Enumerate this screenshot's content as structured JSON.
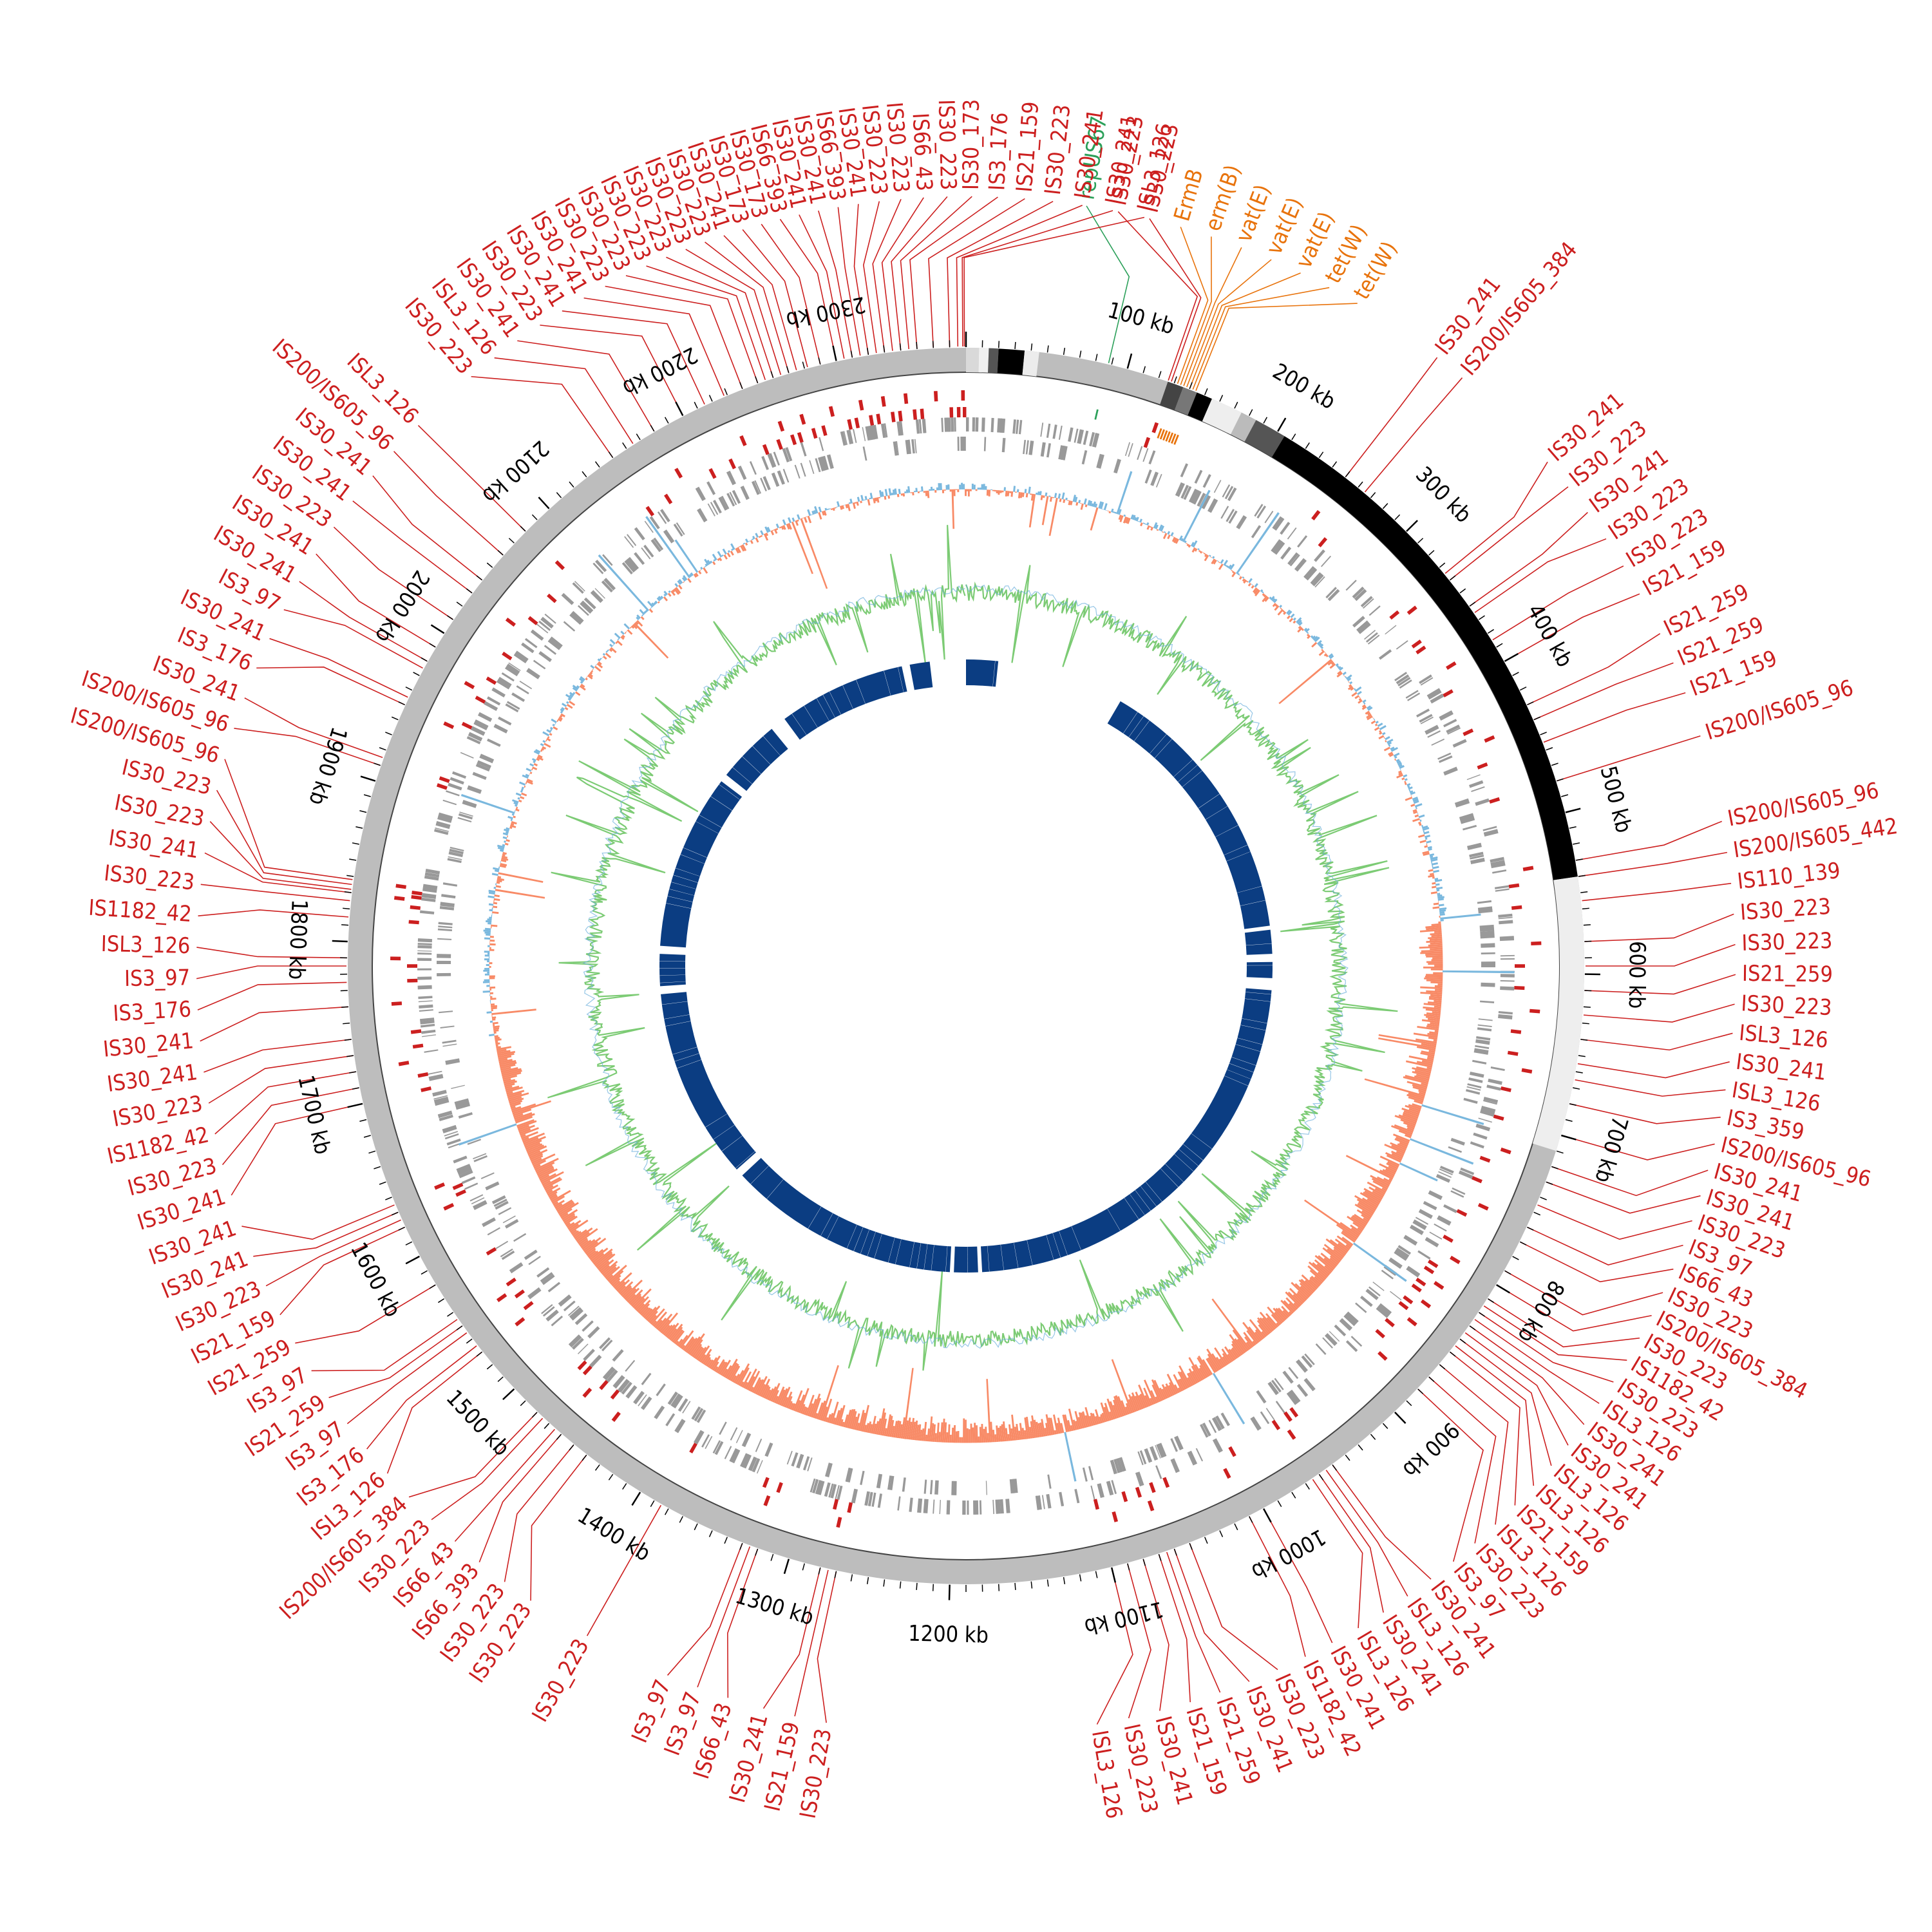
{
  "genome": {
    "length_kb": 2380,
    "tick_label_step_kb": 100,
    "minor_tick_step_kb": 10
  },
  "colors": {
    "backbone": "#bdbdbd",
    "genes": "#999999",
    "is_element": "#cc1f1f",
    "resistance": "#e8730c",
    "replicon": "#2ca05a",
    "gc_positive": "#7ab8de",
    "gc_negative": "#f88a66",
    "skew_green": "#7ccb74",
    "skew_blue": "#6aaedc",
    "blast": "#0b3d82"
  },
  "tick_labels": [
    "100 kb",
    "200 kb",
    "300 kb",
    "400 kb",
    "500 kb",
    "600 kb",
    "700 kb",
    "800 kb",
    "900 kb",
    "1000 kb",
    "1100 kb",
    "1200 kb",
    "1300 kb",
    "1400 kb",
    "1500 kb",
    "1600 kb",
    "1700 kb",
    "1800 kb",
    "1900 kb",
    "2000 kb",
    "2100 kb",
    "2200 kb",
    "2300 kb"
  ],
  "regions": [
    {
      "start": 0,
      "end": 8,
      "shade": "#d9d9d9"
    },
    {
      "start": 8,
      "end": 14,
      "shade": "#f0f0f0"
    },
    {
      "start": 14,
      "end": 20,
      "shade": "#555555"
    },
    {
      "start": 20,
      "end": 36,
      "shade": "#000000"
    },
    {
      "start": 36,
      "end": 45,
      "shade": "#ececec"
    },
    {
      "start": 126,
      "end": 136,
      "shade": "#444444"
    },
    {
      "start": 136,
      "end": 145,
      "shade": "#777777"
    },
    {
      "start": 145,
      "end": 155,
      "shade": "#000000"
    },
    {
      "start": 155,
      "end": 175,
      "shade": "#eeeeee"
    },
    {
      "start": 175,
      "end": 185,
      "shade": "#bbbbbb"
    },
    {
      "start": 185,
      "end": 205,
      "shade": "#555555"
    },
    {
      "start": 205,
      "end": 540,
      "shade": "#000000"
    },
    {
      "start": 540,
      "end": 710,
      "shade": "#eeeeee"
    }
  ],
  "blast_arcs": [
    {
      "start": 0,
      "end": 40
    },
    {
      "start": 200,
      "end": 545
    },
    {
      "start": 550,
      "end": 580
    },
    {
      "start": 590,
      "end": 610
    },
    {
      "start": 625,
      "end": 1170
    },
    {
      "start": 1175,
      "end": 1205
    },
    {
      "start": 1210,
      "end": 1500
    },
    {
      "start": 1510,
      "end": 1750
    },
    {
      "start": 1760,
      "end": 1800
    },
    {
      "start": 1810,
      "end": 2030
    },
    {
      "start": 2040,
      "end": 2120
    },
    {
      "start": 2140,
      "end": 2300
    },
    {
      "start": 2310,
      "end": 2335
    }
  ],
  "annotations": [
    {
      "text": "repUS67",
      "pos": 88,
      "type": "replicon"
    },
    {
      "text": "ErmB",
      "pos": 132,
      "type": "resistance"
    },
    {
      "text": "erm(B)",
      "pos": 134,
      "type": "resistance"
    },
    {
      "text": "vat(E)",
      "pos": 136,
      "type": "resistance"
    },
    {
      "text": "vat(E)",
      "pos": 138,
      "type": "resistance"
    },
    {
      "text": "vat(E)",
      "pos": 140,
      "type": "resistance"
    },
    {
      "text": "tet(W)",
      "pos": 142,
      "type": "resistance"
    },
    {
      "text": "tet(W)",
      "pos": 144,
      "type": "resistance"
    },
    {
      "text": "IS30_241",
      "pos": 250,
      "type": "is"
    },
    {
      "text": "IS200/IS605_384",
      "pos": 265,
      "type": "is"
    },
    {
      "text": "IS30_241",
      "pos": 335,
      "type": "is"
    },
    {
      "text": "IS30_223",
      "pos": 340,
      "type": "is"
    },
    {
      "text": "IS30_241",
      "pos": 360,
      "type": "is"
    },
    {
      "text": "IS30_223",
      "pos": 365,
      "type": "is"
    },
    {
      "text": "IS30_223",
      "pos": 385,
      "type": "is"
    },
    {
      "text": "IS21_159",
      "pos": 400,
      "type": "is"
    },
    {
      "text": "IS21_259",
      "pos": 430,
      "type": "is"
    },
    {
      "text": "IS21_259",
      "pos": 440,
      "type": "is"
    },
    {
      "text": "IS21_159",
      "pos": 455,
      "type": "is"
    },
    {
      "text": "IS200/IS605_96",
      "pos": 480,
      "type": "is"
    },
    {
      "text": "IS200/IS605_96",
      "pos": 530,
      "type": "is"
    },
    {
      "text": "IS200/IS605_442",
      "pos": 540,
      "type": "is"
    },
    {
      "text": "IS110_139",
      "pos": 555,
      "type": "is"
    },
    {
      "text": "IS30_223",
      "pos": 580,
      "type": "is"
    },
    {
      "text": "IS30_223",
      "pos": 595,
      "type": "is"
    },
    {
      "text": "IS21_259",
      "pos": 610,
      "type": "is"
    },
    {
      "text": "IS30_223",
      "pos": 625,
      "type": "is"
    },
    {
      "text": "ISL3_126",
      "pos": 640,
      "type": "is"
    },
    {
      "text": "IS30_241",
      "pos": 655,
      "type": "is"
    },
    {
      "text": "ISL3_126",
      "pos": 665,
      "type": "is"
    },
    {
      "text": "IS3_359",
      "pos": 680,
      "type": "is"
    },
    {
      "text": "IS200/IS605_96",
      "pos": 700,
      "type": "is"
    },
    {
      "text": "IS30_241",
      "pos": 720,
      "type": "is"
    },
    {
      "text": "IS30_241",
      "pos": 730,
      "type": "is"
    },
    {
      "text": "IS30_223",
      "pos": 745,
      "type": "is"
    },
    {
      "text": "IS3_97",
      "pos": 760,
      "type": "is"
    },
    {
      "text": "IS66_43",
      "pos": 770,
      "type": "is"
    },
    {
      "text": "IS30_223",
      "pos": 790,
      "type": "is"
    },
    {
      "text": "IS200/IS605_384",
      "pos": 800,
      "type": "is"
    },
    {
      "text": "IS30_223",
      "pos": 810,
      "type": "is"
    },
    {
      "text": "IS1182_42",
      "pos": 815,
      "type": "is"
    },
    {
      "text": "IS30_223",
      "pos": 820,
      "type": "is"
    },
    {
      "text": "ISL3_126",
      "pos": 825,
      "type": "is"
    },
    {
      "text": "IS30_241",
      "pos": 830,
      "type": "is"
    },
    {
      "text": "IS30_241",
      "pos": 835,
      "type": "is"
    },
    {
      "text": "ISL3_126",
      "pos": 840,
      "type": "is"
    },
    {
      "text": "ISL3_126",
      "pos": 845,
      "type": "is"
    },
    {
      "text": "IS21_159",
      "pos": 850,
      "type": "is"
    },
    {
      "text": "ISL3_126",
      "pos": 860,
      "type": "is"
    },
    {
      "text": "IS30_223",
      "pos": 870,
      "type": "is"
    },
    {
      "text": "IS3_97",
      "pos": 880,
      "type": "is"
    },
    {
      "text": "IS30_241",
      "pos": 950,
      "type": "is"
    },
    {
      "text": "ISL3_126",
      "pos": 955,
      "type": "is"
    },
    {
      "text": "IS30_241",
      "pos": 960,
      "type": "is"
    },
    {
      "text": "ISL3_126",
      "pos": 965,
      "type": "is"
    },
    {
      "text": "IS30_241",
      "pos": 1000,
      "type": "is"
    },
    {
      "text": "IS1182_42",
      "pos": 1010,
      "type": "is"
    },
    {
      "text": "IS30_223",
      "pos": 1050,
      "type": "is"
    },
    {
      "text": "IS30_241",
      "pos": 1060,
      "type": "is"
    },
    {
      "text": "IS21_259",
      "pos": 1065,
      "type": "is"
    },
    {
      "text": "IS21_159",
      "pos": 1070,
      "type": "is"
    },
    {
      "text": "IS30_241",
      "pos": 1080,
      "type": "is"
    },
    {
      "text": "IS30_223",
      "pos": 1090,
      "type": "is"
    },
    {
      "text": "ISL3_126",
      "pos": 1100,
      "type": "is"
    },
    {
      "text": "IS30_223",
      "pos": 1270,
      "type": "is"
    },
    {
      "text": "IS21_159",
      "pos": 1275,
      "type": "is"
    },
    {
      "text": "IS30_241",
      "pos": 1280,
      "type": "is"
    },
    {
      "text": "IS66_43",
      "pos": 1320,
      "type": "is"
    },
    {
      "text": "IS3_97",
      "pos": 1325,
      "type": "is"
    },
    {
      "text": "IS3_97",
      "pos": 1330,
      "type": "is"
    },
    {
      "text": "IS30_223",
      "pos": 1385,
      "type": "is"
    },
    {
      "text": "IS30_223",
      "pos": 1440,
      "type": "is"
    },
    {
      "text": "IS30_223",
      "pos": 1450,
      "type": "is"
    },
    {
      "text": "IS66_393",
      "pos": 1460,
      "type": "is"
    },
    {
      "text": "IS66_43",
      "pos": 1465,
      "type": "is"
    },
    {
      "text": "IS30_223",
      "pos": 1475,
      "type": "is"
    },
    {
      "text": "IS200/IS605_384",
      "pos": 1480,
      "type": "is"
    },
    {
      "text": "ISL3_126",
      "pos": 1530,
      "type": "is"
    },
    {
      "text": "IS3_176",
      "pos": 1535,
      "type": "is"
    },
    {
      "text": "IS3_97",
      "pos": 1545,
      "type": "is"
    },
    {
      "text": "IS21_259",
      "pos": 1550,
      "type": "is"
    },
    {
      "text": "IS3_97",
      "pos": 1555,
      "type": "is"
    },
    {
      "text": "IS21_259",
      "pos": 1580,
      "type": "is"
    },
    {
      "text": "IS21_159",
      "pos": 1620,
      "type": "is"
    },
    {
      "text": "IS30_223",
      "pos": 1625,
      "type": "is"
    },
    {
      "text": "IS30_241",
      "pos": 1630,
      "type": "is"
    },
    {
      "text": "IS30_241",
      "pos": 1635,
      "type": "is"
    },
    {
      "text": "IS30_241",
      "pos": 1700,
      "type": "is"
    },
    {
      "text": "IS30_223",
      "pos": 1710,
      "type": "is"
    },
    {
      "text": "IS1182_42",
      "pos": 1720,
      "type": "is"
    },
    {
      "text": "IS30_223",
      "pos": 1730,
      "type": "is"
    },
    {
      "text": "IS30_241",
      "pos": 1740,
      "type": "is"
    },
    {
      "text": "IS30_241",
      "pos": 1760,
      "type": "is"
    },
    {
      "text": "IS3_176",
      "pos": 1775,
      "type": "is"
    },
    {
      "text": "IS3_97",
      "pos": 1785,
      "type": "is"
    },
    {
      "text": "ISL3_126",
      "pos": 1790,
      "type": "is"
    },
    {
      "text": "IS1182_42",
      "pos": 1815,
      "type": "is"
    },
    {
      "text": "IS30_223",
      "pos": 1825,
      "type": "is"
    },
    {
      "text": "IS30_241",
      "pos": 1830,
      "type": "is"
    },
    {
      "text": "IS30_223",
      "pos": 1832,
      "type": "is"
    },
    {
      "text": "IS30_223",
      "pos": 1835,
      "type": "is"
    },
    {
      "text": "IS200/IS605_96",
      "pos": 1838,
      "type": "is"
    },
    {
      "text": "IS200/IS605_96",
      "pos": 1910,
      "type": "is"
    },
    {
      "text": "IS30_241",
      "pos": 1915,
      "type": "is"
    },
    {
      "text": "IS3_176",
      "pos": 1950,
      "type": "is"
    },
    {
      "text": "IS30_241",
      "pos": 1955,
      "type": "is"
    },
    {
      "text": "IS3_97",
      "pos": 1975,
      "type": "is"
    },
    {
      "text": "IS30_241",
      "pos": 1980,
      "type": "is"
    },
    {
      "text": "IS30_241",
      "pos": 1990,
      "type": "is"
    },
    {
      "text": "IS30_223",
      "pos": 2010,
      "type": "is"
    },
    {
      "text": "IS30_241",
      "pos": 2030,
      "type": "is"
    },
    {
      "text": "IS30_241",
      "pos": 2040,
      "type": "is"
    },
    {
      "text": "IS200/IS605_96",
      "pos": 2060,
      "type": "is"
    },
    {
      "text": "ISL3_126",
      "pos": 2080,
      "type": "is"
    },
    {
      "text": "IS30_223",
      "pos": 2150,
      "type": "is"
    },
    {
      "text": "ISL3_126",
      "pos": 2165,
      "type": "is"
    },
    {
      "text": "IS30_241",
      "pos": 2180,
      "type": "is"
    },
    {
      "text": "IS30_223",
      "pos": 2200,
      "type": "is"
    },
    {
      "text": "IS30_241",
      "pos": 2215,
      "type": "is"
    },
    {
      "text": "IS30_241",
      "pos": 2228,
      "type": "is"
    },
    {
      "text": "IS30_223",
      "pos": 2240,
      "type": "is"
    },
    {
      "text": "IS30_223",
      "pos": 2250,
      "type": "is"
    },
    {
      "text": "IS30_223",
      "pos": 2255,
      "type": "is"
    },
    {
      "text": "IS30_223",
      "pos": 2260,
      "type": "is"
    },
    {
      "text": "IS30_223",
      "pos": 2265,
      "type": "is"
    },
    {
      "text": "IS30_223",
      "pos": 2270,
      "type": "is"
    },
    {
      "text": "IS30_241",
      "pos": 2275,
      "type": "is"
    },
    {
      "text": "IS30_173",
      "pos": 2282,
      "type": "is"
    },
    {
      "text": "IS30_173",
      "pos": 2290,
      "type": "is"
    },
    {
      "text": "IS66_393",
      "pos": 2300,
      "type": "is"
    },
    {
      "text": "IS30_241",
      "pos": 2305,
      "type": "is"
    },
    {
      "text": "IS30_241",
      "pos": 2310,
      "type": "is"
    },
    {
      "text": "IS66_393",
      "pos": 2315,
      "type": "is"
    },
    {
      "text": "IS30_241",
      "pos": 2320,
      "type": "is"
    },
    {
      "text": "IS30_223",
      "pos": 2325,
      "type": "is"
    },
    {
      "text": "IS30_223",
      "pos": 2330,
      "type": "is"
    },
    {
      "text": "IS66_43",
      "pos": 2335,
      "type": "is"
    },
    {
      "text": "IS30_223",
      "pos": 2340,
      "type": "is"
    },
    {
      "text": "IS30_173",
      "pos": 2345,
      "type": "is"
    },
    {
      "text": "IS3_176",
      "pos": 2350,
      "type": "is"
    },
    {
      "text": "IS21_159",
      "pos": 2360,
      "type": "is"
    },
    {
      "text": "IS30_223",
      "pos": 2370,
      "type": "is"
    },
    {
      "text": "IS30_241",
      "pos": 2375,
      "type": "is"
    },
    {
      "text": "IS30_241",
      "pos": 2378,
      "type": "is"
    },
    {
      "text": "ISL3_126",
      "pos": 2379,
      "type": "is"
    },
    {
      "text": "IS30_223",
      "pos": 126,
      "type": "is"
    },
    {
      "text": "IS30_223",
      "pos": 128,
      "type": "is"
    }
  ]
}
